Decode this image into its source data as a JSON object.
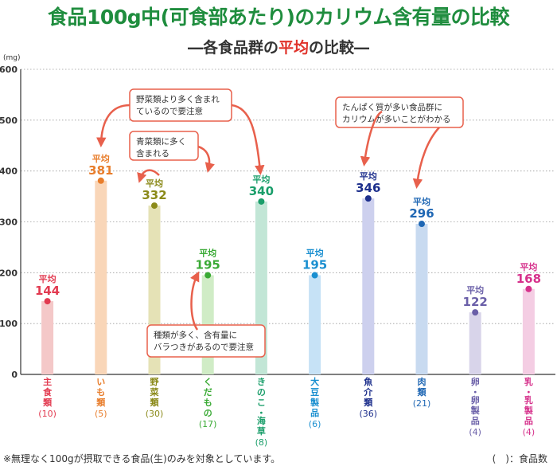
{
  "header": {
    "title": "食品100g中(可食部あたり)のカリウム含有量の比較",
    "subtitle_pre": "―各食品群の",
    "subtitle_hl": "平均",
    "subtitle_post": "の比較―"
  },
  "footer": {
    "note": "※無理なく100gが摂取できる食品(生)のみを対象としています。",
    "legend": "(　)：食品数"
  },
  "chart_data": {
    "type": "bar",
    "ylabel": "(mg)",
    "ylim": [
      0,
      600
    ],
    "yticks": [
      0,
      100,
      200,
      300,
      400,
      500,
      600
    ],
    "grid": true,
    "avg_label": "平均",
    "categories": [
      {
        "name": "主食類",
        "count": "(10)",
        "value": 144,
        "color": "#e23a50",
        "bar": "#f4c8c8"
      },
      {
        "name": "いも類",
        "count": "(5)",
        "value": 381,
        "color": "#e87d2b",
        "bar": "#f9d6b8"
      },
      {
        "name": "野菜類",
        "count": "(30)",
        "value": 332,
        "color": "#8b8a1a",
        "bar": "#e5e2b6"
      },
      {
        "name": "くだもの",
        "count": "(17)",
        "value": 195,
        "color": "#3aaa35",
        "bar": "#d0ecc6"
      },
      {
        "name": "きのこ・海草",
        "count": "(8)",
        "value": 340,
        "color": "#1a9e6a",
        "bar": "#c2e6d6"
      },
      {
        "name": "大豆製品",
        "count": "(6)",
        "value": 195,
        "color": "#1a8fd0",
        "bar": "#c6e2f6"
      },
      {
        "name": "魚介類",
        "count": "(36)",
        "value": 346,
        "color": "#1d2f8c",
        "bar": "#cdd0ee"
      },
      {
        "name": "肉類",
        "count": "(21)",
        "value": 296,
        "color": "#1f67b4",
        "bar": "#c8daf0"
      },
      {
        "name": "卵・卵製品",
        "count": "(4)",
        "value": 122,
        "color": "#6a5fa8",
        "bar": "#d8d4ea"
      },
      {
        "name": "乳・乳製品",
        "count": "(4)",
        "value": 168,
        "color": "#d6328c",
        "bar": "#f4cde3"
      }
    ],
    "annotations": [
      {
        "lines": [
          "野菜類より多く含まれ",
          "ているので要注意"
        ]
      },
      {
        "lines": [
          "青菜類に多く",
          "含まれる"
        ]
      },
      {
        "lines": [
          "たんぱく質が多い食品群に",
          "カリウムが多いことがわかる"
        ]
      },
      {
        "lines": [
          "種類が多く、含有量に",
          "バラつきがあるので要注意"
        ]
      }
    ]
  }
}
